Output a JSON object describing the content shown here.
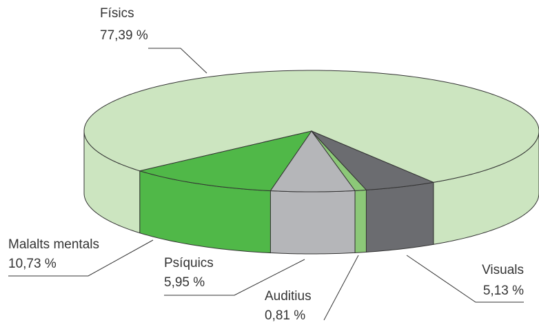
{
  "chart_data": {
    "type": "pie",
    "categories": [
      "Físics",
      "Malalts mentals",
      "Psíquics",
      "Auditius",
      "Visuals"
    ],
    "values": [
      77.39,
      10.73,
      5.95,
      0.81,
      5.13
    ],
    "value_labels": [
      "77,39 %",
      "10,73 %",
      "5,95 %",
      "0,81 %",
      "5,13 %"
    ],
    "colors": [
      "#cce5c0",
      "#50b848",
      "#b5b6b9",
      "#8cc878",
      "#6b6c70"
    ]
  }
}
